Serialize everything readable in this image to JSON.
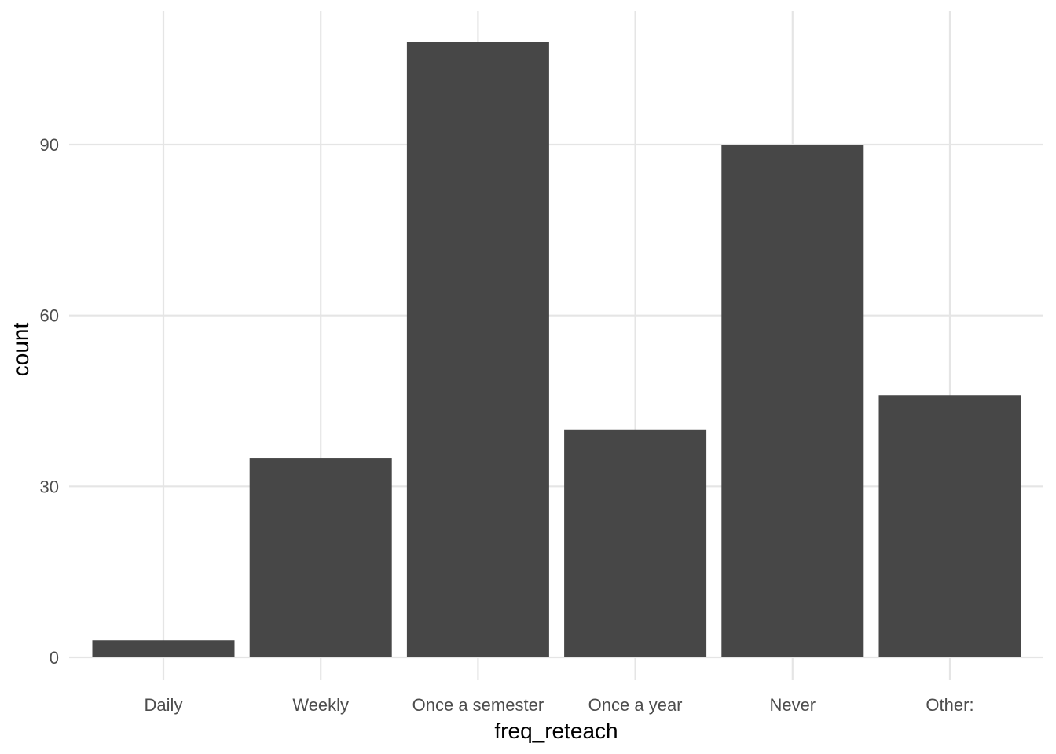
{
  "chart_data": {
    "type": "bar",
    "title": "",
    "xlabel": "freq_reteach",
    "ylabel": "count",
    "categories": [
      "Daily",
      "Weekly",
      "Once a semester",
      "Once a year",
      "Never",
      "Other:"
    ],
    "values": [
      3,
      35,
      108,
      40,
      90,
      46
    ],
    "ylim": [
      0,
      114
    ],
    "yticks": [
      0,
      30,
      60,
      90
    ],
    "y_tick_labels": [
      "0",
      "30",
      "60",
      "90"
    ],
    "grid": true,
    "legend": "none",
    "colors": {
      "bar": "#474747",
      "grid": "#e5e5e5",
      "background": "#ffffff"
    }
  }
}
